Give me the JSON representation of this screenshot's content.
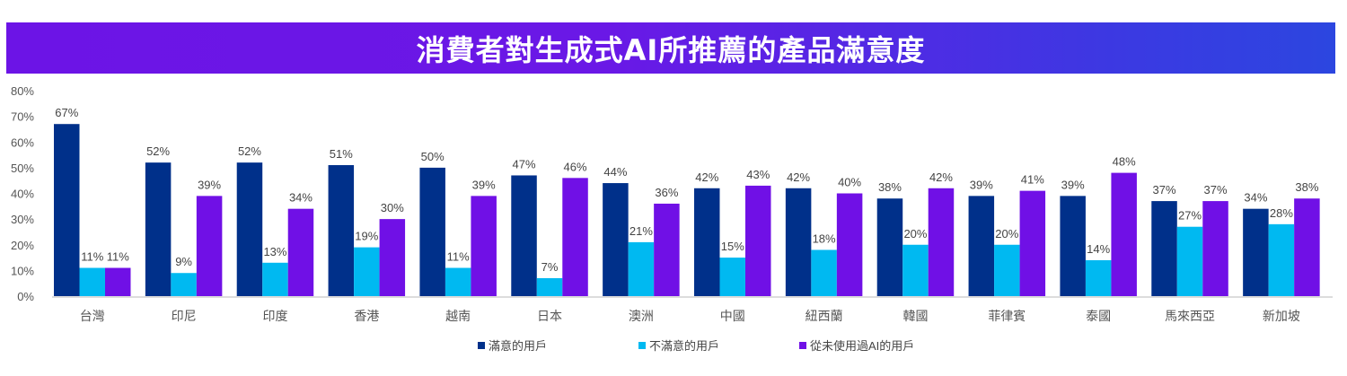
{
  "chart_data": {
    "type": "bar",
    "title": "消費者對生成式AI所推薦的產品滿意度",
    "categories": [
      "台灣",
      "印尼",
      "印度",
      "香港",
      "越南",
      "日本",
      "澳洲",
      "中國",
      "紐西蘭",
      "韓國",
      "菲律賓",
      "泰國",
      "馬來西亞",
      "新加坡"
    ],
    "series": [
      {
        "name": "滿意的用戶",
        "color": "#00308a",
        "values": [
          67,
          52,
          52,
          51,
          50,
          47,
          44,
          42,
          42,
          38,
          39,
          39,
          37,
          34
        ]
      },
      {
        "name": "不滿意的用戶",
        "color": "#00b9f1",
        "values": [
          11,
          9,
          13,
          19,
          11,
          7,
          21,
          15,
          18,
          20,
          20,
          14,
          27,
          28
        ]
      },
      {
        "name": "從未使用過AI的用戶",
        "color": "#7010e6",
        "values": [
          11,
          39,
          34,
          30,
          39,
          46,
          36,
          43,
          40,
          42,
          41,
          48,
          37,
          38
        ]
      }
    ],
    "yticks": [
      "0%",
      "10%",
      "20%",
      "30%",
      "40%",
      "50%",
      "60%",
      "70%",
      "80%"
    ],
    "ylim": [
      0,
      80
    ],
    "xlabel": "",
    "ylabel": "",
    "grid": false,
    "legend_position": "bottom"
  }
}
